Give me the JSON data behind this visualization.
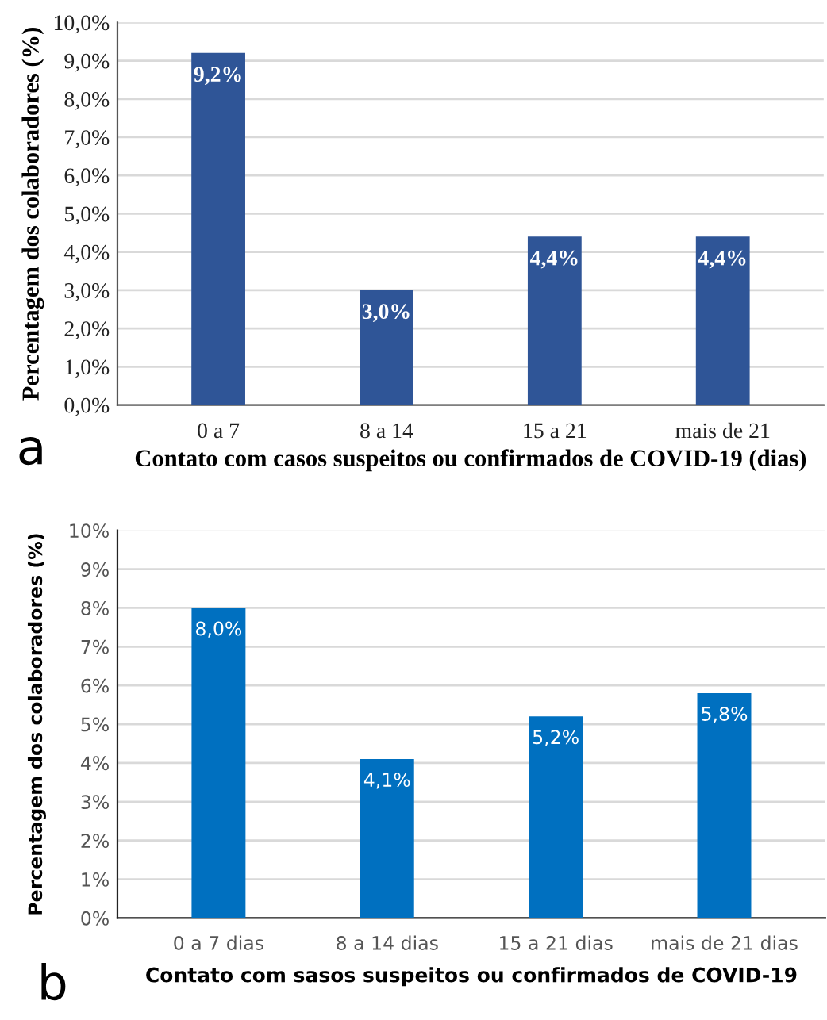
{
  "chart_data": [
    {
      "type": "bar",
      "categories": [
        "0 a 7",
        "8 a 14",
        "15 a 21",
        "mais de 21"
      ],
      "values": [
        9.2,
        3.0,
        4.4,
        4.4
      ],
      "color": "#2f5597",
      "value_labels": [
        "9,2%",
        "3,0%",
        "4,4%",
        "4,4%"
      ],
      "xlabel": "Contato com casos suspeitos ou confirmados de COVID-19 (dias)",
      "ylabel": "Percentagem dos colaboradores (%)",
      "ylim": [
        0,
        10
      ],
      "yticks": [
        {
          "value": 0,
          "label": "0,0%"
        },
        {
          "value": 1,
          "label": "1,0%"
        },
        {
          "value": 2,
          "label": "2,0%"
        },
        {
          "value": 3,
          "label": "3,0%"
        },
        {
          "value": 4,
          "label": "4,0%"
        },
        {
          "value": 5,
          "label": "5,0%"
        },
        {
          "value": 6,
          "label": "6,0%"
        },
        {
          "value": 7,
          "label": "7,0%"
        },
        {
          "value": 8,
          "label": "8,0%"
        },
        {
          "value": 9,
          "label": "9,0%"
        },
        {
          "value": 10,
          "label": "10,0%"
        }
      ],
      "grid": "y",
      "annotations": [
        "a"
      ]
    },
    {
      "type": "bar",
      "categories": [
        "0 a 7 dias",
        "8 a 14 dias",
        "15 a 21 dias",
        "mais de 21 dias"
      ],
      "values": [
        8.0,
        4.1,
        5.2,
        5.8
      ],
      "color": "#0070c0",
      "value_labels": [
        "8,0%",
        "4,1%",
        "5,2%",
        "5,8%"
      ],
      "xlabel": "Contato com sasos suspeitos ou confirmados de COVID-19",
      "ylabel": "Percentagem dos colaboradores (%)",
      "ylim": [
        0,
        10
      ],
      "yticks": [
        {
          "value": 0,
          "label": "0%"
        },
        {
          "value": 1,
          "label": "1%"
        },
        {
          "value": 2,
          "label": "2%"
        },
        {
          "value": 3,
          "label": "3%"
        },
        {
          "value": 4,
          "label": "4%"
        },
        {
          "value": 5,
          "label": "5%"
        },
        {
          "value": 6,
          "label": "6%"
        },
        {
          "value": 7,
          "label": "7%"
        },
        {
          "value": 8,
          "label": "8%"
        },
        {
          "value": 9,
          "label": "9%"
        },
        {
          "value": 10,
          "label": "10%"
        }
      ],
      "grid": "y",
      "annotations": [
        "b"
      ]
    }
  ]
}
